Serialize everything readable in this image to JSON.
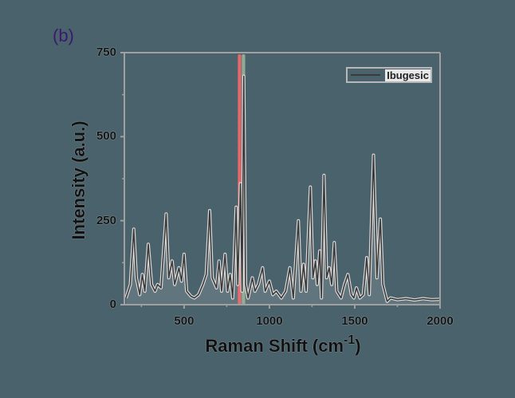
{
  "panel_label": "(b)",
  "chart_data": {
    "type": "line",
    "title": "",
    "xlabel": "Raman Shift (cm-1)",
    "xlabel_main": "Raman Shift (cm",
    "xlabel_sup": "-1",
    "xlabel_close": ")",
    "ylabel": "Intensity (a.u.)",
    "xlim": [
      150,
      2000
    ],
    "ylim": [
      0,
      750
    ],
    "x_ticks": [
      "500",
      "1000",
      "1500",
      "2000"
    ],
    "y_ticks": [
      "0",
      "250",
      "500",
      "750"
    ],
    "grid": false,
    "legend_position": "upper right",
    "series": [
      {
        "name": "Ibugesic",
        "color": "#3a3a3a",
        "points": [
          [
            160,
            20
          ],
          [
            185,
            60
          ],
          [
            205,
            225
          ],
          [
            220,
            80
          ],
          [
            240,
            30
          ],
          [
            255,
            90
          ],
          [
            270,
            40
          ],
          [
            290,
            180
          ],
          [
            310,
            60
          ],
          [
            330,
            40
          ],
          [
            345,
            60
          ],
          [
            365,
            50
          ],
          [
            395,
            270
          ],
          [
            410,
            80
          ],
          [
            430,
            130
          ],
          [
            445,
            60
          ],
          [
            470,
            110
          ],
          [
            485,
            70
          ],
          [
            500,
            150
          ],
          [
            515,
            40
          ],
          [
            540,
            25
          ],
          [
            560,
            20
          ],
          [
            585,
            30
          ],
          [
            610,
            60
          ],
          [
            630,
            90
          ],
          [
            650,
            280
          ],
          [
            665,
            80
          ],
          [
            690,
            50
          ],
          [
            705,
            130
          ],
          [
            720,
            40
          ],
          [
            740,
            150
          ],
          [
            755,
            40
          ],
          [
            770,
            90
          ],
          [
            785,
            20
          ],
          [
            805,
            290
          ],
          [
            815,
            60
          ],
          [
            830,
            360
          ],
          [
            840,
            40
          ],
          [
            850,
            680
          ],
          [
            860,
            60
          ],
          [
            875,
            20
          ],
          [
            900,
            80
          ],
          [
            915,
            40
          ],
          [
            935,
            60
          ],
          [
            960,
            110
          ],
          [
            975,
            40
          ],
          [
            1000,
            70
          ],
          [
            1020,
            30
          ],
          [
            1040,
            40
          ],
          [
            1070,
            20
          ],
          [
            1095,
            40
          ],
          [
            1120,
            110
          ],
          [
            1140,
            20
          ],
          [
            1170,
            250
          ],
          [
            1185,
            40
          ],
          [
            1200,
            120
          ],
          [
            1215,
            40
          ],
          [
            1240,
            350
          ],
          [
            1255,
            80
          ],
          [
            1270,
            130
          ],
          [
            1280,
            60
          ],
          [
            1295,
            160
          ],
          [
            1305,
            20
          ],
          [
            1320,
            385
          ],
          [
            1335,
            80
          ],
          [
            1350,
            110
          ],
          [
            1365,
            60
          ],
          [
            1380,
            185
          ],
          [
            1395,
            40
          ],
          [
            1420,
            20
          ],
          [
            1440,
            60
          ],
          [
            1460,
            90
          ],
          [
            1480,
            30
          ],
          [
            1495,
            20
          ],
          [
            1510,
            50
          ],
          [
            1530,
            20
          ],
          [
            1550,
            30
          ],
          [
            1570,
            140
          ],
          [
            1585,
            30
          ],
          [
            1610,
            445
          ],
          [
            1630,
            80
          ],
          [
            1650,
            255
          ],
          [
            1665,
            60
          ],
          [
            1690,
            10
          ],
          [
            1710,
            20
          ],
          [
            1750,
            15
          ],
          [
            1800,
            18
          ],
          [
            1850,
            14
          ],
          [
            1900,
            18
          ],
          [
            1950,
            15
          ],
          [
            2000,
            16
          ]
        ]
      }
    ],
    "highlight_bands": [
      {
        "x_center": 825,
        "width": 20,
        "color": "#ff6b6b",
        "label": "red band"
      },
      {
        "x_center": 848,
        "width": 20,
        "color": "#9bb89b",
        "label": "green band"
      }
    ]
  },
  "legend": {
    "items": [
      {
        "label": "Ibugesic",
        "color": "#3a3a3a"
      }
    ]
  },
  "colors": {
    "background": "#4a626c",
    "axis": "#a0a0a0",
    "spectrum": "#3a3a3a",
    "spectrum_glow": "#d8d8d8",
    "red_band": "#ff6b6b",
    "green_band": "#9bb89b",
    "panel_label": "#3a1a6e"
  }
}
